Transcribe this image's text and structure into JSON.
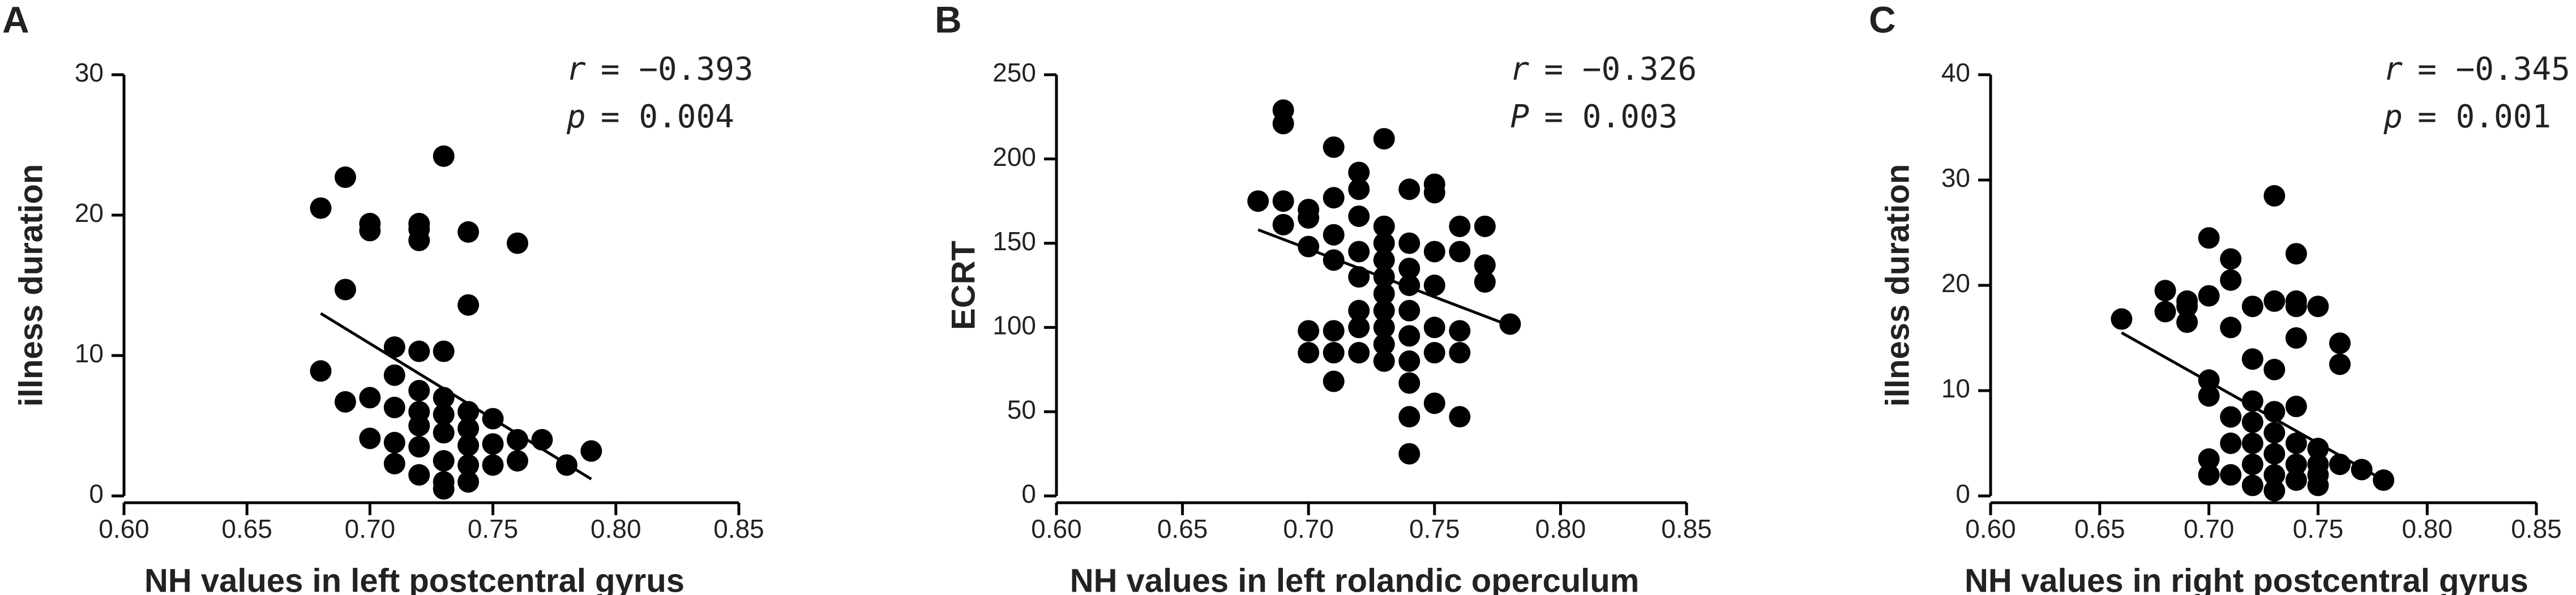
{
  "chart_data": [
    {
      "type": "scatter",
      "panel": "A",
      "xlabel": "NH values in left postcentral gyrus",
      "ylabel": "illness duration",
      "annotations": [
        {
          "symbol": "r",
          "text": "= −0.393"
        },
        {
          "symbol": "p",
          "text": "= 0.004"
        }
      ],
      "xlim": [
        0.6,
        0.85
      ],
      "ylim": [
        0,
        30
      ],
      "xticks": [
        {
          "value": 0.6,
          "label": "0.60"
        },
        0.65,
        {
          "value": 0.7,
          "label": "0.70"
        },
        0.75,
        {
          "value": 0.8,
          "label": "0.80"
        },
        0.85
      ],
      "yticks": [
        0,
        10,
        20,
        30
      ],
      "color": "#000000",
      "x": [
        0.68,
        0.69,
        0.69,
        0.7,
        0.7,
        0.72,
        0.72,
        0.72,
        0.73,
        0.74,
        0.76,
        0.74,
        0.68,
        0.69,
        0.7,
        0.7,
        0.71,
        0.71,
        0.71,
        0.71,
        0.71,
        0.72,
        0.72,
        0.72,
        0.72,
        0.72,
        0.72,
        0.73,
        0.73,
        0.73,
        0.73,
        0.73,
        0.73,
        0.73,
        0.74,
        0.74,
        0.74,
        0.74,
        0.74,
        0.75,
        0.75,
        0.75,
        0.76,
        0.76,
        0.77,
        0.78,
        0.79
      ],
      "y": [
        20.5,
        22.7,
        14.7,
        19.4,
        18.9,
        19.4,
        18.2,
        19,
        24.2,
        18.8,
        18.0,
        13.6,
        8.9,
        6.7,
        7.0,
        4.1,
        10.6,
        8.6,
        6.3,
        3.8,
        2.3,
        10.3,
        7.5,
        6.0,
        5.0,
        3.5,
        1.5,
        10.3,
        7.0,
        5.8,
        4.5,
        2.5,
        1.0,
        0.5,
        6.0,
        4.8,
        3.6,
        2.2,
        1.0,
        5.5,
        3.7,
        2.2,
        4.0,
        2.5,
        4.0,
        2.2,
        3.2
      ],
      "fit": {
        "x": [
          0.68,
          0.79
        ],
        "y": [
          13,
          1.2
        ]
      }
    },
    {
      "type": "scatter",
      "panel": "B",
      "xlabel": "NH values in left rolandic operculum",
      "ylabel": "ECRT",
      "annotations": [
        {
          "symbol": "r",
          "text": "= −0.326"
        },
        {
          "symbol": "P",
          "text": "= 0.003"
        }
      ],
      "xlim": [
        0.6,
        0.85
      ],
      "ylim": [
        0,
        250
      ],
      "xticks": [
        {
          "value": 0.6,
          "label": "0.60"
        },
        0.65,
        {
          "value": 0.7,
          "label": "0.70"
        },
        0.75,
        {
          "value": 0.8,
          "label": "0.80"
        },
        0.85
      ],
      "yticks": [
        0,
        50,
        100,
        150,
        200,
        250
      ],
      "color": "#000000",
      "x": [
        0.69,
        0.69,
        0.68,
        0.69,
        0.69,
        0.7,
        0.7,
        0.7,
        0.7,
        0.7,
        0.71,
        0.71,
        0.71,
        0.71,
        0.71,
        0.71,
        0.71,
        0.72,
        0.72,
        0.72,
        0.72,
        0.72,
        0.72,
        0.72,
        0.72,
        0.73,
        0.73,
        0.73,
        0.73,
        0.73,
        0.73,
        0.73,
        0.73,
        0.73,
        0.73,
        0.74,
        0.74,
        0.74,
        0.74,
        0.74,
        0.74,
        0.74,
        0.74,
        0.74,
        0.74,
        0.75,
        0.75,
        0.75,
        0.75,
        0.75,
        0.75,
        0.75,
        0.76,
        0.76,
        0.76,
        0.76,
        0.76,
        0.77,
        0.77,
        0.77,
        0.78
      ],
      "y": [
        229,
        221,
        175,
        175,
        161,
        170,
        165,
        148,
        98,
        85,
        207,
        177,
        155,
        140,
        98,
        85,
        68,
        192,
        182,
        166,
        145,
        130,
        110,
        100,
        85,
        212,
        160,
        150,
        140,
        130,
        120,
        110,
        100,
        90,
        80,
        182,
        150,
        135,
        125,
        110,
        95,
        80,
        67,
        47,
        25,
        185,
        180,
        145,
        125,
        100,
        85,
        55,
        160,
        145,
        98,
        85,
        47,
        160,
        137,
        127,
        102
      ],
      "fit": {
        "x": [
          0.68,
          0.78
        ],
        "y": [
          158,
          101
        ]
      }
    },
    {
      "type": "scatter",
      "panel": "C",
      "xlabel": "NH values in right postcentral gyrus",
      "ylabel": "illness duration",
      "annotations": [
        {
          "symbol": "r",
          "text": "= −0.345"
        },
        {
          "symbol": "p",
          "text": "= 0.001"
        }
      ],
      "xlim": [
        0.6,
        0.85
      ],
      "ylim": [
        0,
        40
      ],
      "xticks": [
        {
          "value": 0.6,
          "label": "0.60"
        },
        0.65,
        {
          "value": 0.7,
          "label": "0.70"
        },
        0.75,
        {
          "value": 0.8,
          "label": "0.80"
        },
        0.85
      ],
      "yticks": [
        0,
        10,
        20,
        30,
        40
      ],
      "color": "#000000",
      "x": [
        0.66,
        0.68,
        0.68,
        0.69,
        0.69,
        0.69,
        0.7,
        0.7,
        0.7,
        0.7,
        0.7,
        0.7,
        0.71,
        0.71,
        0.71,
        0.71,
        0.71,
        0.71,
        0.72,
        0.72,
        0.72,
        0.72,
        0.72,
        0.72,
        0.72,
        0.73,
        0.73,
        0.73,
        0.73,
        0.73,
        0.73,
        0.73,
        0.73,
        0.74,
        0.74,
        0.74,
        0.74,
        0.74,
        0.74,
        0.74,
        0.74,
        0.75,
        0.75,
        0.75,
        0.75,
        0.75,
        0.76,
        0.76,
        0.76,
        0.77,
        0.78
      ],
      "y": [
        16.8,
        19.5,
        17.5,
        18.5,
        16.5,
        18,
        24.5,
        19,
        11,
        9.5,
        3.5,
        2,
        22.5,
        20.5,
        16,
        7.5,
        5,
        2,
        18,
        13,
        9,
        7,
        5,
        3,
        1,
        28.5,
        18.5,
        12,
        8,
        6,
        4,
        2,
        0.5,
        23,
        18.5,
        18,
        15,
        8.5,
        5,
        3,
        1.5,
        18,
        4.5,
        3,
        2,
        1,
        14.5,
        12.5,
        3,
        2.5,
        1.5
      ],
      "fit": {
        "x": [
          0.66,
          0.78
        ],
        "y": [
          15.5,
          1.5
        ]
      }
    }
  ]
}
